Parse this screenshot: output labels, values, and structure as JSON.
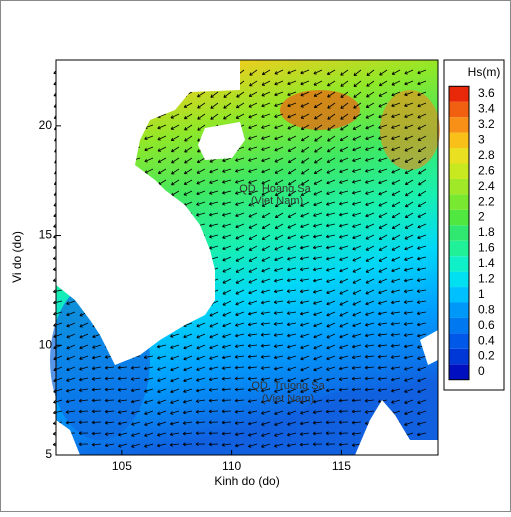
{
  "chart_data": {
    "type": "contour",
    "x_label": "Kinh do (do)",
    "y_label": "Vi do (do)",
    "xlim": [
      102,
      119.4
    ],
    "ylim": [
      5,
      23
    ],
    "xticks": [
      105,
      110,
      115
    ],
    "yticks": [
      5,
      10,
      15,
      20
    ],
    "annotations": [
      "QD. Hoang Sa",
      "(Viet Nam)",
      "QD. Truong Sa",
      "(Viet Nam)"
    ],
    "colorbar": {
      "title": "Hs(m)",
      "levels": [
        0,
        0.2,
        0.4,
        0.6,
        0.8,
        1,
        1.2,
        1.4,
        1.6,
        1.8,
        2,
        2.2,
        2.4,
        2.6,
        2.8,
        3,
        3.2,
        3.4,
        3.6
      ],
      "colors": [
        "#0010c0",
        "#0038d8",
        "#0058e8",
        "#0078f0",
        "#0098f8",
        "#00c0ff",
        "#00e0f0",
        "#10f0c8",
        "#20f098",
        "#30e870",
        "#50e840",
        "#78e830",
        "#a0e828",
        "#c8e820",
        "#e8e020",
        "#f8c018",
        "#f89018",
        "#f06010",
        "#e82808"
      ]
    }
  }
}
